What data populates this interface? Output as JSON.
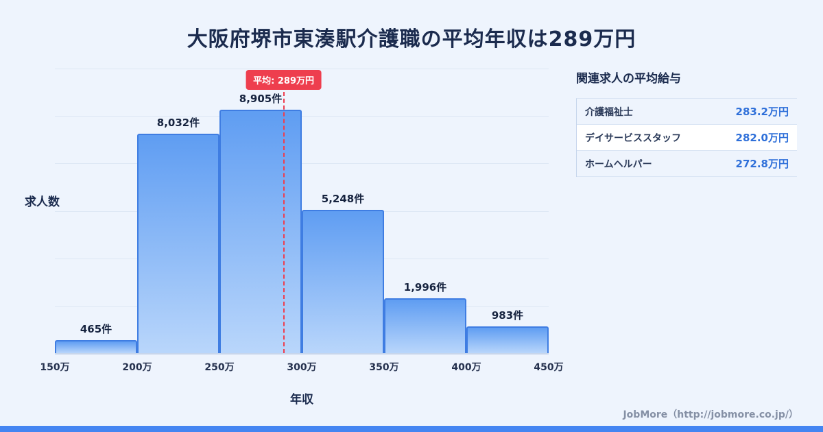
{
  "title": "大阪府堺市東湊駅介護職の平均年収は289万円",
  "colors": {
    "background": "#eef4fd",
    "accent_red": "#ee3e4e",
    "bar_top": "#5f9df2",
    "bar_bottom": "#b9d6fb",
    "bar_border": "#3f7de2",
    "salary_blue": "#2e6fd9",
    "footer_strip": "#4485f2"
  },
  "chart_data": {
    "type": "bar",
    "title": "大阪府堺市東湊駅介護職の平均年収は289万円",
    "xlabel": "年収",
    "ylabel": "求人数",
    "bin_labels": [
      "150万",
      "200万",
      "250万",
      "300万",
      "350万",
      "400万",
      "450万"
    ],
    "bin_edges": [
      150,
      200,
      250,
      300,
      350,
      400,
      450
    ],
    "values": [
      465,
      8032,
      8905,
      5248,
      1996,
      983
    ],
    "value_labels": [
      "465件",
      "8,032件",
      "8,905件",
      "5,248件",
      "1,996件",
      "983件"
    ],
    "average_value": 289,
    "average_label": "平均: 289万円",
    "x_range": [
      150,
      450
    ],
    "grid": true,
    "gridline_count": 6,
    "legend": "none"
  },
  "side_panel": {
    "title": "関連求人の平均給与",
    "rows": [
      {
        "job": "介護福祉士",
        "salary": "283.2万円"
      },
      {
        "job": "デイサービススタッフ",
        "salary": "282.0万円"
      },
      {
        "job": "ホームヘルパー",
        "salary": "272.8万円"
      }
    ]
  },
  "footer": {
    "credit": "JobMore（http://jobmore.co.jp/）"
  }
}
